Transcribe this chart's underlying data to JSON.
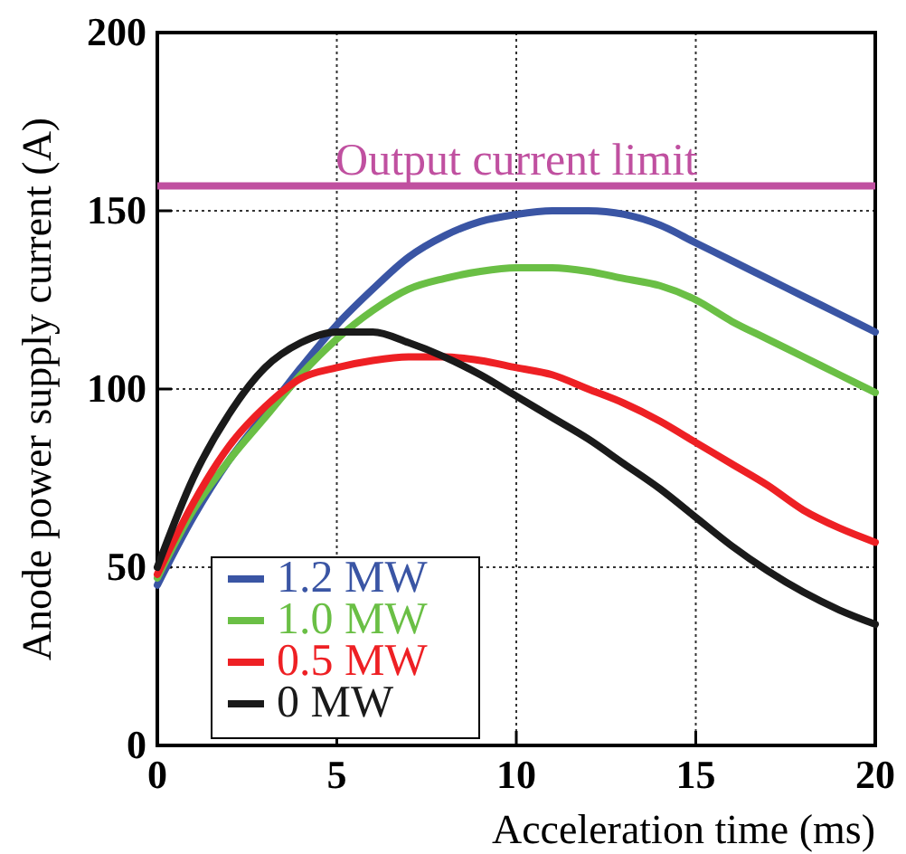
{
  "chart_data": {
    "type": "line",
    "xlabel": "Acceleration time (ms)",
    "ylabel": "Anode power supply current (A)",
    "x": [
      0,
      1,
      2,
      3,
      4,
      5,
      6,
      7,
      8,
      9,
      10,
      11,
      12,
      13,
      14,
      15,
      16,
      17,
      18,
      19,
      20
    ],
    "series": [
      {
        "name": "1.2 MW",
        "color": "#3a55a4",
        "values": [
          45,
          64,
          80,
          93,
          106,
          118,
          128,
          137,
          143,
          147,
          149,
          150,
          150,
          149,
          146,
          141,
          136,
          131,
          126,
          121,
          116
        ]
      },
      {
        "name": "1.0 MW",
        "color": "#6abf45",
        "values": [
          47,
          66,
          80,
          92,
          104,
          114,
          122,
          128,
          131,
          133,
          134,
          134,
          133,
          131,
          129,
          125,
          119,
          114,
          109,
          104,
          99
        ]
      },
      {
        "name": "0.5 MW",
        "color": "#ee2024",
        "values": [
          48,
          68,
          84,
          95,
          103,
          106,
          108,
          109,
          109,
          108,
          106,
          104,
          100,
          96,
          91,
          85,
          79,
          73,
          66,
          61,
          57
        ]
      },
      {
        "name": "0 MW",
        "color": "#1a1a1a",
        "values": [
          50,
          75,
          93,
          106,
          113,
          116,
          116,
          113,
          109,
          104,
          98,
          92,
          86,
          79,
          72,
          64,
          56,
          49,
          43,
          38,
          34
        ]
      }
    ],
    "xlim": [
      0,
      20
    ],
    "xticks": [
      0,
      5,
      10,
      15,
      20
    ],
    "ylim": [
      0,
      200
    ],
    "yticks": [
      0,
      50,
      100,
      150,
      200
    ],
    "ref_lines": [
      {
        "axis": "y",
        "value": 157,
        "label": "Output current limit",
        "color": "#c050a0"
      }
    ],
    "grid": true,
    "legend": "bottom left",
    "marker": "none",
    "line_style": "solid"
  }
}
